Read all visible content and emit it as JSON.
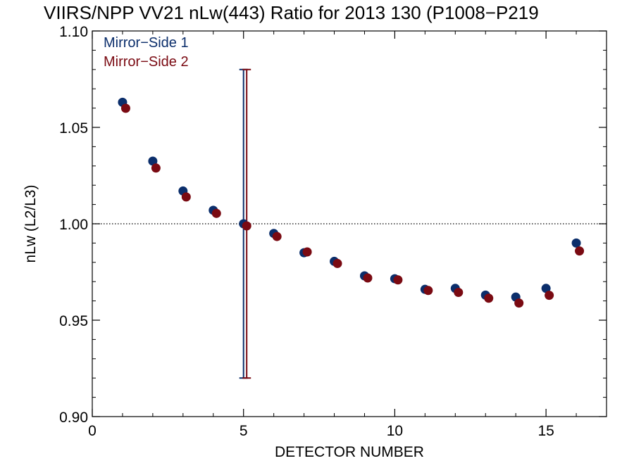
{
  "chart_data": {
    "type": "scatter",
    "title": "VIIRS/NPP VV21 nLw(443) Ratio for 2013 130 (P1008−P219",
    "xlabel": "DETECTOR NUMBER",
    "ylabel": "nLw (L2/L3)",
    "xlim": [
      0,
      17
    ],
    "ylim": [
      0.9,
      1.1
    ],
    "x_ticks": [
      0,
      5,
      10,
      15
    ],
    "x_tick_labels": [
      "0",
      "5",
      "10",
      "15"
    ],
    "y_ticks": [
      0.9,
      0.95,
      1.0,
      1.05,
      1.1
    ],
    "y_tick_labels": [
      "0.90",
      "0.95",
      "1.00",
      "1.05",
      "1.10"
    ],
    "reference_line": {
      "y": 1.0,
      "style": "dotted"
    },
    "legend_position": "top-left",
    "series": [
      {
        "name": "Mirror−Side 1",
        "color": "#0b2e6b",
        "x": [
          1,
          2,
          3,
          4,
          5,
          6,
          7,
          8,
          9,
          10,
          11,
          12,
          13,
          14,
          15,
          16
        ],
        "values": [
          1.063,
          1.0325,
          1.017,
          1.007,
          1.0,
          0.995,
          0.985,
          0.9805,
          0.973,
          0.9715,
          0.966,
          0.9665,
          0.963,
          0.962,
          0.9665,
          0.99
        ],
        "error_bar": {
          "x": 5,
          "low": 0.92,
          "high": 1.08
        }
      },
      {
        "name": "Mirror−Side 2",
        "color": "#7a0a12",
        "x": [
          1,
          2,
          3,
          4,
          5,
          6,
          7,
          8,
          9,
          10,
          11,
          12,
          13,
          14,
          15,
          16
        ],
        "values": [
          1.061,
          1.03,
          1.015,
          1.0065,
          1.0,
          0.9945,
          0.9865,
          0.9805,
          0.973,
          0.972,
          0.9665,
          0.9655,
          0.9625,
          0.96,
          0.964,
          0.987
        ],
        "error_bar": {
          "x": 5,
          "low": 0.92,
          "high": 1.08
        }
      }
    ]
  }
}
